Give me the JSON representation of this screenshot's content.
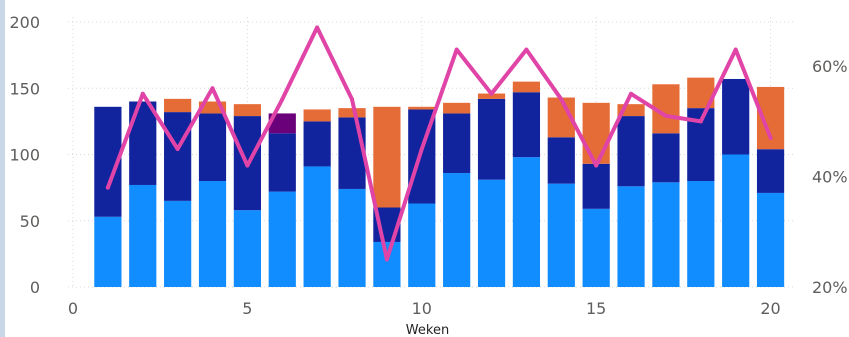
{
  "chart_data": {
    "type": "bar",
    "stacked": true,
    "xlabel": "Weken",
    "x": [
      1,
      2,
      3,
      4,
      5,
      6,
      7,
      8,
      9,
      10,
      11,
      12,
      13,
      14,
      15,
      16,
      17,
      18,
      19,
      20
    ],
    "xlim": [
      0,
      20.5
    ],
    "xticks": [
      "0",
      "5",
      "10",
      "15",
      "20"
    ],
    "ylim": [
      0,
      200
    ],
    "yticks": [
      "0",
      "50",
      "100",
      "150",
      "200"
    ],
    "y2lim": [
      0.2,
      0.68
    ],
    "y2ticks": [
      "20%",
      "40%",
      "60%"
    ],
    "grid": true,
    "series": [
      {
        "color": "#118dff",
        "values": [
          53,
          77,
          65,
          80,
          58,
          72,
          91,
          74,
          34,
          63,
          86,
          81,
          98,
          78,
          59,
          76,
          79,
          80,
          100,
          71
        ]
      },
      {
        "color": "#12239e",
        "values": [
          83,
          63,
          67,
          51,
          71,
          44,
          34,
          54,
          26,
          71,
          45,
          61,
          49,
          35,
          34,
          53,
          37,
          55,
          57,
          33
        ]
      },
      {
        "color": "#e66c37",
        "values": [
          0,
          0,
          10,
          9,
          9,
          0,
          9,
          7,
          76,
          2,
          8,
          4,
          8,
          30,
          46,
          9,
          37,
          23,
          0,
          47
        ]
      },
      {
        "color": "#6b007b",
        "values": [
          0,
          0,
          0,
          0,
          0,
          15,
          0,
          0,
          0,
          0,
          0,
          0,
          0,
          0,
          0,
          0,
          0,
          0,
          0,
          0
        ]
      }
    ],
    "line": {
      "color": "#e044a7",
      "axis": "secondary",
      "values": [
        0.38,
        0.55,
        0.45,
        0.56,
        0.42,
        0.54,
        0.67,
        0.54,
        0.25,
        0.45,
        0.63,
        0.55,
        0.63,
        0.54,
        0.42,
        0.55,
        0.51,
        0.5,
        0.63,
        0.47
      ]
    }
  }
}
